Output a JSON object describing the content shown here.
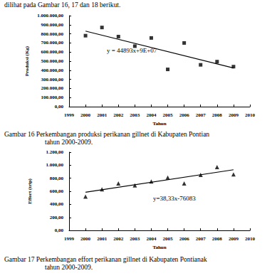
{
  "text": "dilihat pada Gambar 16, 17 dan 18 berikut.",
  "chart_data": [
    {
      "type": "scatter",
      "marker": "square",
      "color": "#000000",
      "x": [
        2000,
        2001,
        2002,
        2003,
        2004,
        2005,
        2006,
        2007,
        2008,
        2009
      ],
      "values": [
        780000,
        870000,
        770000,
        665000,
        755000,
        410000,
        700000,
        460000,
        495000,
        440000
      ],
      "trendline": {
        "x": [
          2000,
          2009
        ],
        "values": [
          830000,
          425000
        ]
      },
      "annotation": "y = 44893x+9E+07",
      "xlabel": "Tahun",
      "ylabel": "Produksi (Kg)",
      "xlim": [
        1999,
        2010
      ],
      "xticks": [
        1999,
        2000,
        2001,
        2002,
        2003,
        2004,
        2005,
        2006,
        2007,
        2008,
        2009,
        2010
      ],
      "ylim": [
        0,
        1000000
      ],
      "yticks": [
        {
          "value": 0,
          "label": "0,00"
        },
        {
          "value": 100000,
          "label": "100.000,00"
        },
        {
          "value": 200000,
          "label": "200.000,00"
        },
        {
          "value": 300000,
          "label": "300.000,00"
        },
        {
          "value": 400000,
          "label": "400.000,00"
        },
        {
          "value": 500000,
          "label": "500.000,00"
        },
        {
          "value": 600000,
          "label": "600.000,00"
        },
        {
          "value": 700000,
          "label": "700.000,00"
        },
        {
          "value": 800000,
          "label": "800.000,00"
        },
        {
          "value": 900000,
          "label": "900.000,00"
        },
        {
          "value": 1000000,
          "label": "1.000.000,00"
        }
      ],
      "grid": false,
      "caption": [
        "Gambar 16  Perkembangan produksi perikanan gillnet di Kabupaten Pontian",
        "tahun 2000-2009."
      ]
    },
    {
      "type": "scatter",
      "marker": "triangle",
      "color": "#000000",
      "x": [
        2000,
        2001,
        2002,
        2003,
        2004,
        2005,
        2006,
        2007,
        2008,
        2009
      ],
      "values": [
        520,
        630,
        720,
        690,
        750,
        810,
        720,
        850,
        970,
        860
      ],
      "trendline": {
        "x": [
          2000,
          2009
        ],
        "values": [
          585,
          930
        ]
      },
      "annotation": "y=38,33x-76083",
      "xlabel": "Tahun",
      "ylabel": "Effort (trip)",
      "xlim": [
        1999,
        2010
      ],
      "xticks": [
        1999,
        2000,
        2001,
        2002,
        2003,
        2004,
        2005,
        2006,
        2007,
        2008,
        2009,
        2010
      ],
      "ylim": [
        0,
        1200
      ],
      "yticks": [
        {
          "value": 0,
          "label": "0,00"
        },
        {
          "value": 200,
          "label": "200,00"
        },
        {
          "value": 400,
          "label": "400,00"
        },
        {
          "value": 600,
          "label": "600,00"
        },
        {
          "value": 800,
          "label": "800,00"
        },
        {
          "value": 1000,
          "label": "1.000,00"
        },
        {
          "value": 1200,
          "label": "1.200,00"
        }
      ],
      "grid": false,
      "caption": [
        "Gambar 17  Perkembangan effort perikanan gillnet di Kabupaten Pontianak",
        "tahun 2000-2009."
      ]
    }
  ]
}
